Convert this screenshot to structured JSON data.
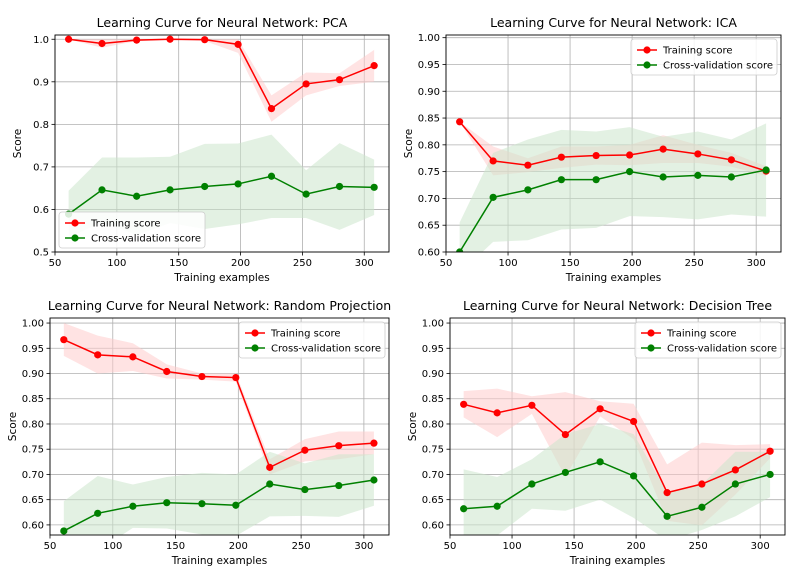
{
  "colors": {
    "training": "#ff0000",
    "cross_validation": "#008000",
    "training_band": "#ffcccc",
    "cv_band": "#cce6cc",
    "grid": "#b0b0b0"
  },
  "chart_data": [
    {
      "type": "line",
      "title": "Learning Curve for Neural Network: PCA",
      "xlabel": "Training examples",
      "ylabel": "Score",
      "xlim": [
        50,
        320
      ],
      "ylim": [
        0.5,
        1.01
      ],
      "xticks": [
        "50",
        "100",
        "150",
        "200",
        "250",
        "300"
      ],
      "yticks": [
        "0.5",
        "0.6",
        "0.7",
        "0.8",
        "0.9",
        "1.0"
      ],
      "grid": true,
      "legend_position": "lower-left",
      "x": [
        61,
        88,
        116,
        143,
        171,
        198,
        225,
        253,
        280,
        308
      ],
      "series": [
        {
          "name": "Training score",
          "color": "#ff0000",
          "values": [
            1.0,
            0.99,
            0.998,
            1.0,
            0.999,
            0.988,
            0.837,
            0.895,
            0.905,
            0.938
          ],
          "band_upper": [
            1.0,
            1.0,
            1.0,
            1.0,
            1.0,
            1.0,
            0.868,
            0.922,
            0.92,
            0.975
          ],
          "band_lower": [
            1.0,
            0.98,
            0.996,
            0.999,
            0.996,
            0.968,
            0.806,
            0.868,
            0.89,
            0.9
          ]
        },
        {
          "name": "Cross-validation score",
          "color": "#008000",
          "values": [
            0.589,
            0.646,
            0.631,
            0.646,
            0.654,
            0.66,
            0.678,
            0.636,
            0.654,
            0.652
          ],
          "band_upper": [
            0.644,
            0.722,
            0.722,
            0.724,
            0.754,
            0.755,
            0.776,
            0.692,
            0.756,
            0.717
          ],
          "band_lower": [
            0.534,
            0.57,
            0.54,
            0.568,
            0.554,
            0.565,
            0.58,
            0.58,
            0.552,
            0.587
          ]
        }
      ]
    },
    {
      "type": "line",
      "title": "Learning Curve for Neural Network: ICA",
      "xlabel": "Training examples",
      "ylabel": "Score",
      "xlim": [
        50,
        320
      ],
      "ylim": [
        0.6,
        1.005
      ],
      "xticks": [
        "50",
        "100",
        "150",
        "200",
        "250",
        "300"
      ],
      "yticks": [
        "0.60",
        "0.65",
        "0.70",
        "0.75",
        "0.80",
        "0.85",
        "0.90",
        "0.95",
        "1.00"
      ],
      "grid": true,
      "legend_position": "top-right",
      "x": [
        61,
        88,
        116,
        143,
        171,
        198,
        225,
        253,
        280,
        308
      ],
      "series": [
        {
          "name": "Training score",
          "color": "#ff0000",
          "values": [
            0.843,
            0.77,
            0.762,
            0.777,
            0.78,
            0.781,
            0.792,
            0.783,
            0.772,
            0.751
          ],
          "band_upper": [
            0.843,
            0.797,
            0.775,
            0.797,
            0.797,
            0.8,
            0.818,
            0.8,
            0.785,
            0.76
          ],
          "band_lower": [
            0.843,
            0.743,
            0.749,
            0.757,
            0.763,
            0.762,
            0.766,
            0.766,
            0.759,
            0.742
          ]
        },
        {
          "name": "Cross-validation score",
          "color": "#008000",
          "values": [
            0.6,
            0.702,
            0.716,
            0.735,
            0.735,
            0.75,
            0.74,
            0.743,
            0.74,
            0.753
          ],
          "band_upper": [
            0.655,
            0.785,
            0.81,
            0.828,
            0.825,
            0.833,
            0.815,
            0.825,
            0.81,
            0.84
          ],
          "band_lower": [
            0.56,
            0.619,
            0.622,
            0.642,
            0.645,
            0.667,
            0.665,
            0.661,
            0.67,
            0.666
          ]
        }
      ]
    },
    {
      "type": "line",
      "title": "Learning Curve for Neural Network: Random Projection",
      "xlabel": "Training examples",
      "ylabel": "Score",
      "xlim": [
        50,
        320
      ],
      "ylim": [
        0.58,
        1.01
      ],
      "xticks": [
        "50",
        "100",
        "150",
        "200",
        "250",
        "300"
      ],
      "yticks": [
        "0.60",
        "0.65",
        "0.70",
        "0.75",
        "0.80",
        "0.85",
        "0.90",
        "0.95",
        "1.00"
      ],
      "grid": true,
      "legend_position": "top-right",
      "x": [
        61,
        88,
        116,
        143,
        171,
        198,
        225,
        253,
        280,
        308
      ],
      "series": [
        {
          "name": "Training score",
          "color": "#ff0000",
          "values": [
            0.967,
            0.937,
            0.933,
            0.904,
            0.894,
            0.892,
            0.714,
            0.748,
            0.757,
            0.762
          ],
          "band_upper": [
            1.0,
            0.975,
            0.96,
            0.918,
            0.9,
            0.9,
            0.73,
            0.77,
            0.785,
            0.785
          ],
          "band_lower": [
            0.935,
            0.9,
            0.905,
            0.89,
            0.888,
            0.884,
            0.7,
            0.726,
            0.73,
            0.74
          ]
        },
        {
          "name": "Cross-validation score",
          "color": "#008000",
          "values": [
            0.588,
            0.623,
            0.637,
            0.644,
            0.642,
            0.639,
            0.681,
            0.67,
            0.678,
            0.689
          ],
          "band_upper": [
            0.647,
            0.697,
            0.68,
            0.695,
            0.703,
            0.7,
            0.745,
            0.722,
            0.74,
            0.74
          ],
          "band_lower": [
            0.529,
            0.549,
            0.594,
            0.593,
            0.581,
            0.578,
            0.617,
            0.618,
            0.616,
            0.638
          ]
        }
      ]
    },
    {
      "type": "line",
      "title": "Learning Curve for Neural Network: Decision Tree",
      "xlabel": "Training examples",
      "ylabel": "Score",
      "xlim": [
        50,
        320
      ],
      "ylim": [
        0.58,
        1.01
      ],
      "xticks": [
        "50",
        "100",
        "150",
        "200",
        "250",
        "300"
      ],
      "yticks": [
        "0.60",
        "0.65",
        "0.70",
        "0.75",
        "0.80",
        "0.85",
        "0.90",
        "0.95",
        "1.00"
      ],
      "grid": true,
      "legend_position": "top-right",
      "x": [
        61,
        88,
        116,
        143,
        171,
        198,
        225,
        253,
        280,
        308
      ],
      "series": [
        {
          "name": "Training score",
          "color": "#ff0000",
          "values": [
            0.839,
            0.822,
            0.837,
            0.779,
            0.83,
            0.805,
            0.664,
            0.681,
            0.709,
            0.746
          ],
          "band_upper": [
            0.865,
            0.87,
            0.855,
            0.863,
            0.845,
            0.84,
            0.72,
            0.763,
            0.758,
            0.76
          ],
          "band_lower": [
            0.813,
            0.774,
            0.82,
            0.695,
            0.815,
            0.77,
            0.608,
            0.599,
            0.66,
            0.732
          ]
        },
        {
          "name": "Cross-validation score",
          "color": "#008000",
          "values": [
            0.632,
            0.637,
            0.681,
            0.704,
            0.725,
            0.697,
            0.617,
            0.635,
            0.681,
            0.7
          ],
          "band_upper": [
            0.71,
            0.695,
            0.73,
            0.78,
            0.8,
            0.78,
            0.665,
            0.68,
            0.745,
            0.745
          ],
          "band_lower": [
            0.554,
            0.579,
            0.632,
            0.628,
            0.65,
            0.614,
            0.569,
            0.59,
            0.617,
            0.655
          ]
        }
      ]
    }
  ]
}
